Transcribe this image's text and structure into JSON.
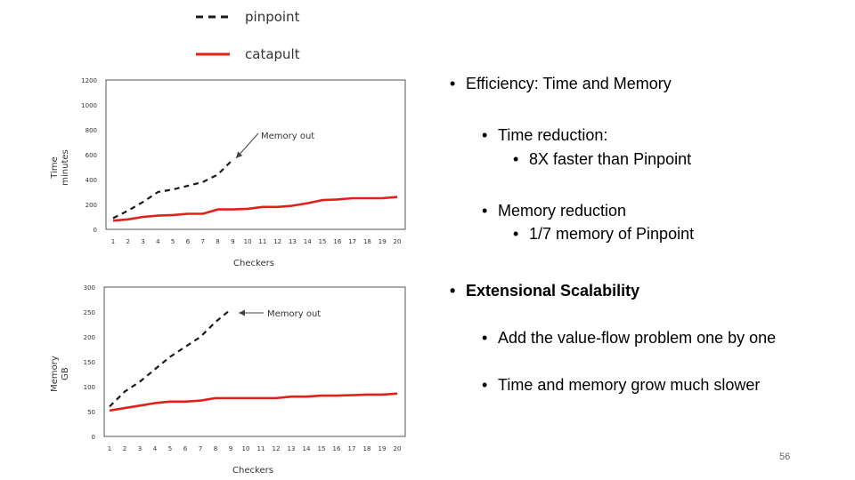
{
  "legend": [
    {
      "label": "pinpoint",
      "style": "dashed",
      "color": "#1a1a1a"
    },
    {
      "label": "catapult",
      "style": "solid",
      "color": "#e0211b"
    }
  ],
  "chart_data": [
    {
      "type": "line",
      "xlabel": "Checkers",
      "ylabel": [
        "Time",
        "minutes"
      ],
      "ylim": [
        0,
        1200
      ],
      "yticks": [
        0,
        200,
        400,
        600,
        800,
        1000,
        1200
      ],
      "xticks": [
        1,
        2,
        3,
        4,
        5,
        6,
        7,
        8,
        9,
        10,
        11,
        12,
        13,
        14,
        15,
        16,
        17,
        18,
        19,
        20
      ],
      "grid": false,
      "series": [
        {
          "name": "pinpoint",
          "x": [
            1,
            2,
            3,
            4,
            5,
            6,
            7,
            8,
            9
          ],
          "values": [
            90,
            150,
            220,
            300,
            320,
            350,
            380,
            440,
            560
          ]
        },
        {
          "name": "catapult",
          "x": [
            1,
            2,
            3,
            4,
            5,
            6,
            7,
            8,
            9,
            10,
            11,
            12,
            13,
            14,
            15,
            16,
            17,
            18,
            19,
            20
          ],
          "values": [
            70,
            80,
            100,
            110,
            115,
            125,
            125,
            160,
            160,
            165,
            180,
            180,
            190,
            210,
            235,
            240,
            250,
            250,
            250,
            260
          ]
        }
      ],
      "annotation": "Memory out"
    },
    {
      "type": "line",
      "xlabel": "Checkers",
      "ylabel": [
        "Memory",
        "GB"
      ],
      "ylim": [
        0,
        300
      ],
      "yticks": [
        0,
        50,
        100,
        150,
        200,
        250,
        300
      ],
      "xticks": [
        1,
        2,
        3,
        4,
        5,
        6,
        7,
        8,
        9,
        10,
        11,
        12,
        13,
        14,
        15,
        16,
        17,
        18,
        19,
        20
      ],
      "grid": false,
      "series": [
        {
          "name": "pinpoint",
          "x": [
            1,
            2,
            3,
            4,
            5,
            6,
            7,
            8,
            9
          ],
          "values": [
            60,
            90,
            110,
            135,
            160,
            180,
            200,
            230,
            255
          ]
        },
        {
          "name": "catapult",
          "x": [
            1,
            2,
            3,
            4,
            5,
            6,
            7,
            8,
            9,
            10,
            11,
            12,
            13,
            14,
            15,
            16,
            17,
            18,
            19,
            20
          ],
          "values": [
            52,
            57,
            62,
            67,
            70,
            70,
            72,
            77,
            77,
            77,
            77,
            77,
            80,
            80,
            82,
            82,
            83,
            84,
            84,
            86
          ]
        }
      ],
      "annotation": "Memory out"
    }
  ],
  "bullets": [
    {
      "text": "Efficiency: Time and Memory",
      "level": 0,
      "bold": false
    },
    {
      "text": "Time reduction:",
      "level": 1,
      "bold": false
    },
    {
      "text": "8X faster than Pinpoint",
      "level": 2,
      "bold": false
    },
    {
      "text": "Memory reduction",
      "level": 1,
      "bold": false
    },
    {
      "text": "1/7 memory of Pinpoint",
      "level": 2,
      "bold": false
    },
    {
      "text": "Extensional Scalability",
      "level": 0,
      "bold": true
    },
    {
      "text": "Add the value-flow problem one by one",
      "level": 1,
      "bold": false
    },
    {
      "text": "Time and memory grow much slower",
      "level": 1,
      "bold": false
    }
  ],
  "page_number": "56"
}
